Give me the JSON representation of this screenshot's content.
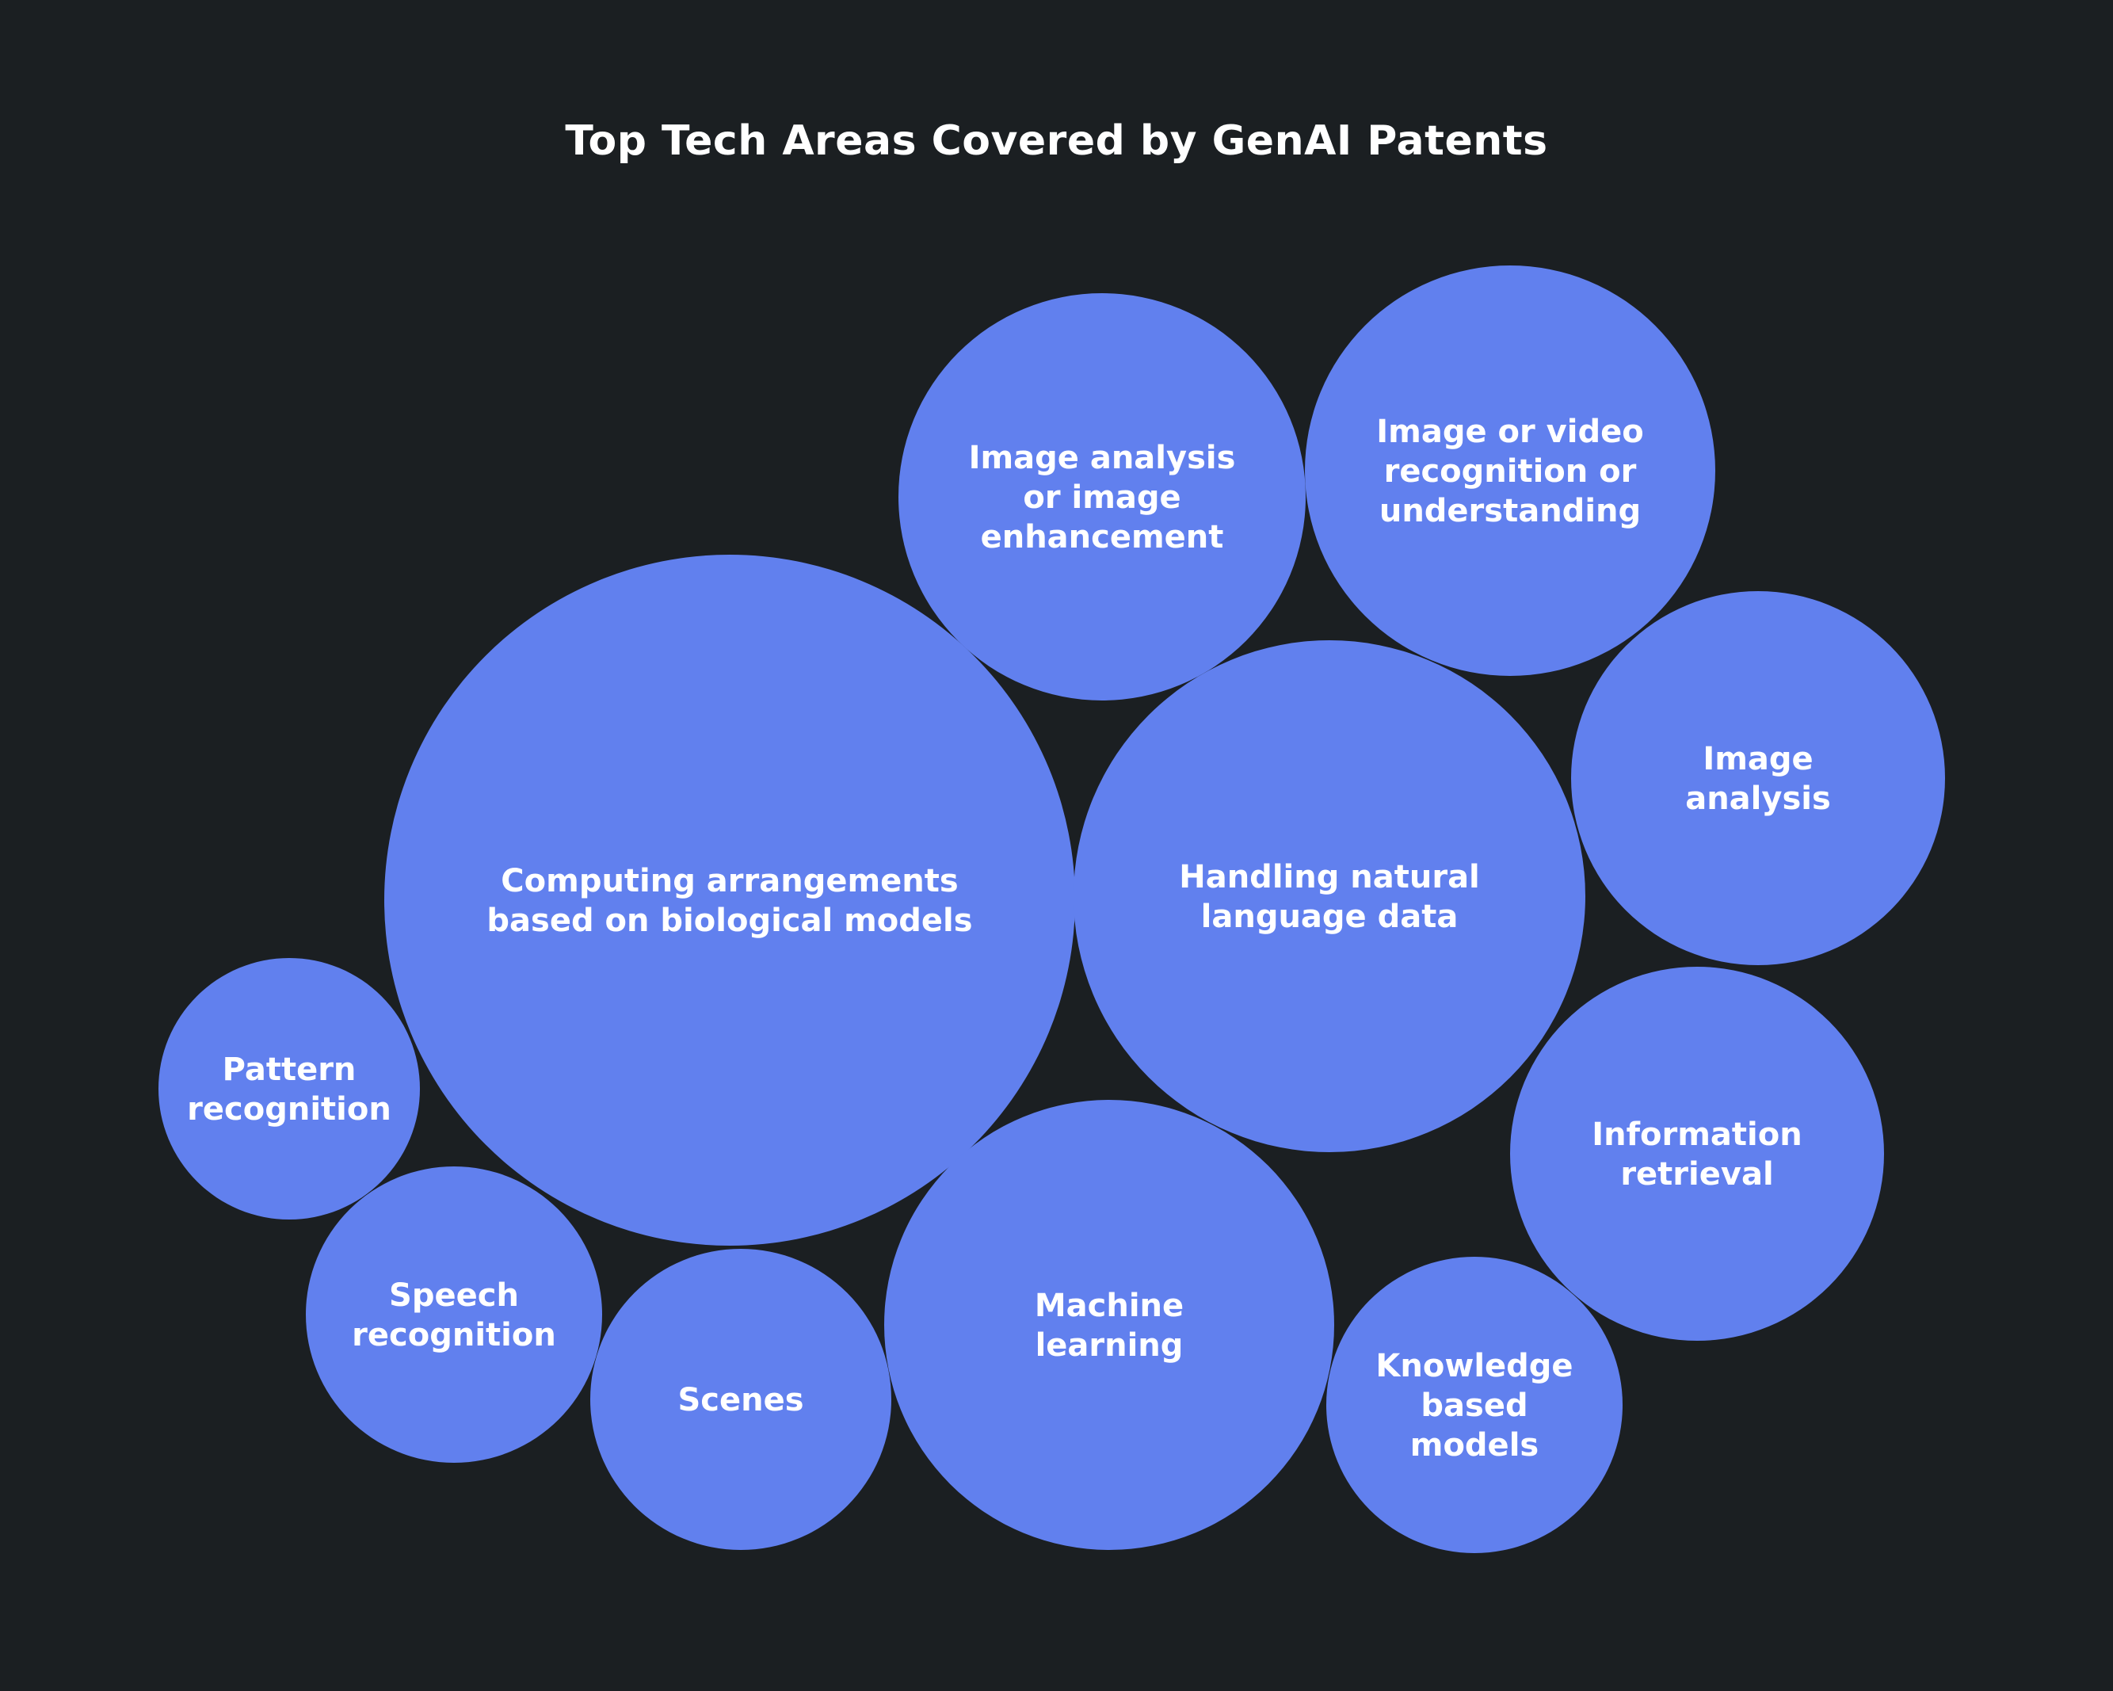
{
  "chart_data": {
    "type": "bubble",
    "title": "Top Tech Areas Covered by GenAI Patents",
    "bubble_color": "#6180ee",
    "background_color": "#1b1f22",
    "label_color": "#ffffff",
    "bubbles": [
      {
        "label": "Computing arrangements based on biological models",
        "lines": [
          "Computing arrangements",
          "based on biological models"
        ]
      },
      {
        "label": "Handling natural language data",
        "lines": [
          "Handling natural",
          "language data"
        ]
      },
      {
        "label": "Machine learning",
        "lines": [
          "Machine",
          "learning"
        ]
      },
      {
        "label": "Image or video recognition or understanding",
        "lines": [
          "Image or video",
          "recognition or",
          "understanding"
        ]
      },
      {
        "label": "Image analysis or image enhancement",
        "lines": [
          "Image analysis",
          "or image",
          "enhancement"
        ]
      },
      {
        "label": "Image analysis",
        "lines": [
          "Image",
          "analysis"
        ]
      },
      {
        "label": "Information retrieval",
        "lines": [
          "Information",
          "retrieval"
        ]
      },
      {
        "label": "Scenes",
        "lines": [
          "Scenes"
        ]
      },
      {
        "label": "Speech recognition",
        "lines": [
          "Speech",
          "recognition"
        ]
      },
      {
        "label": "Knowledge based models",
        "lines": [
          "Knowledge",
          "based",
          "models"
        ]
      },
      {
        "label": "Pattern recognition",
        "lines": [
          "Pattern",
          "recognition"
        ]
      }
    ]
  }
}
